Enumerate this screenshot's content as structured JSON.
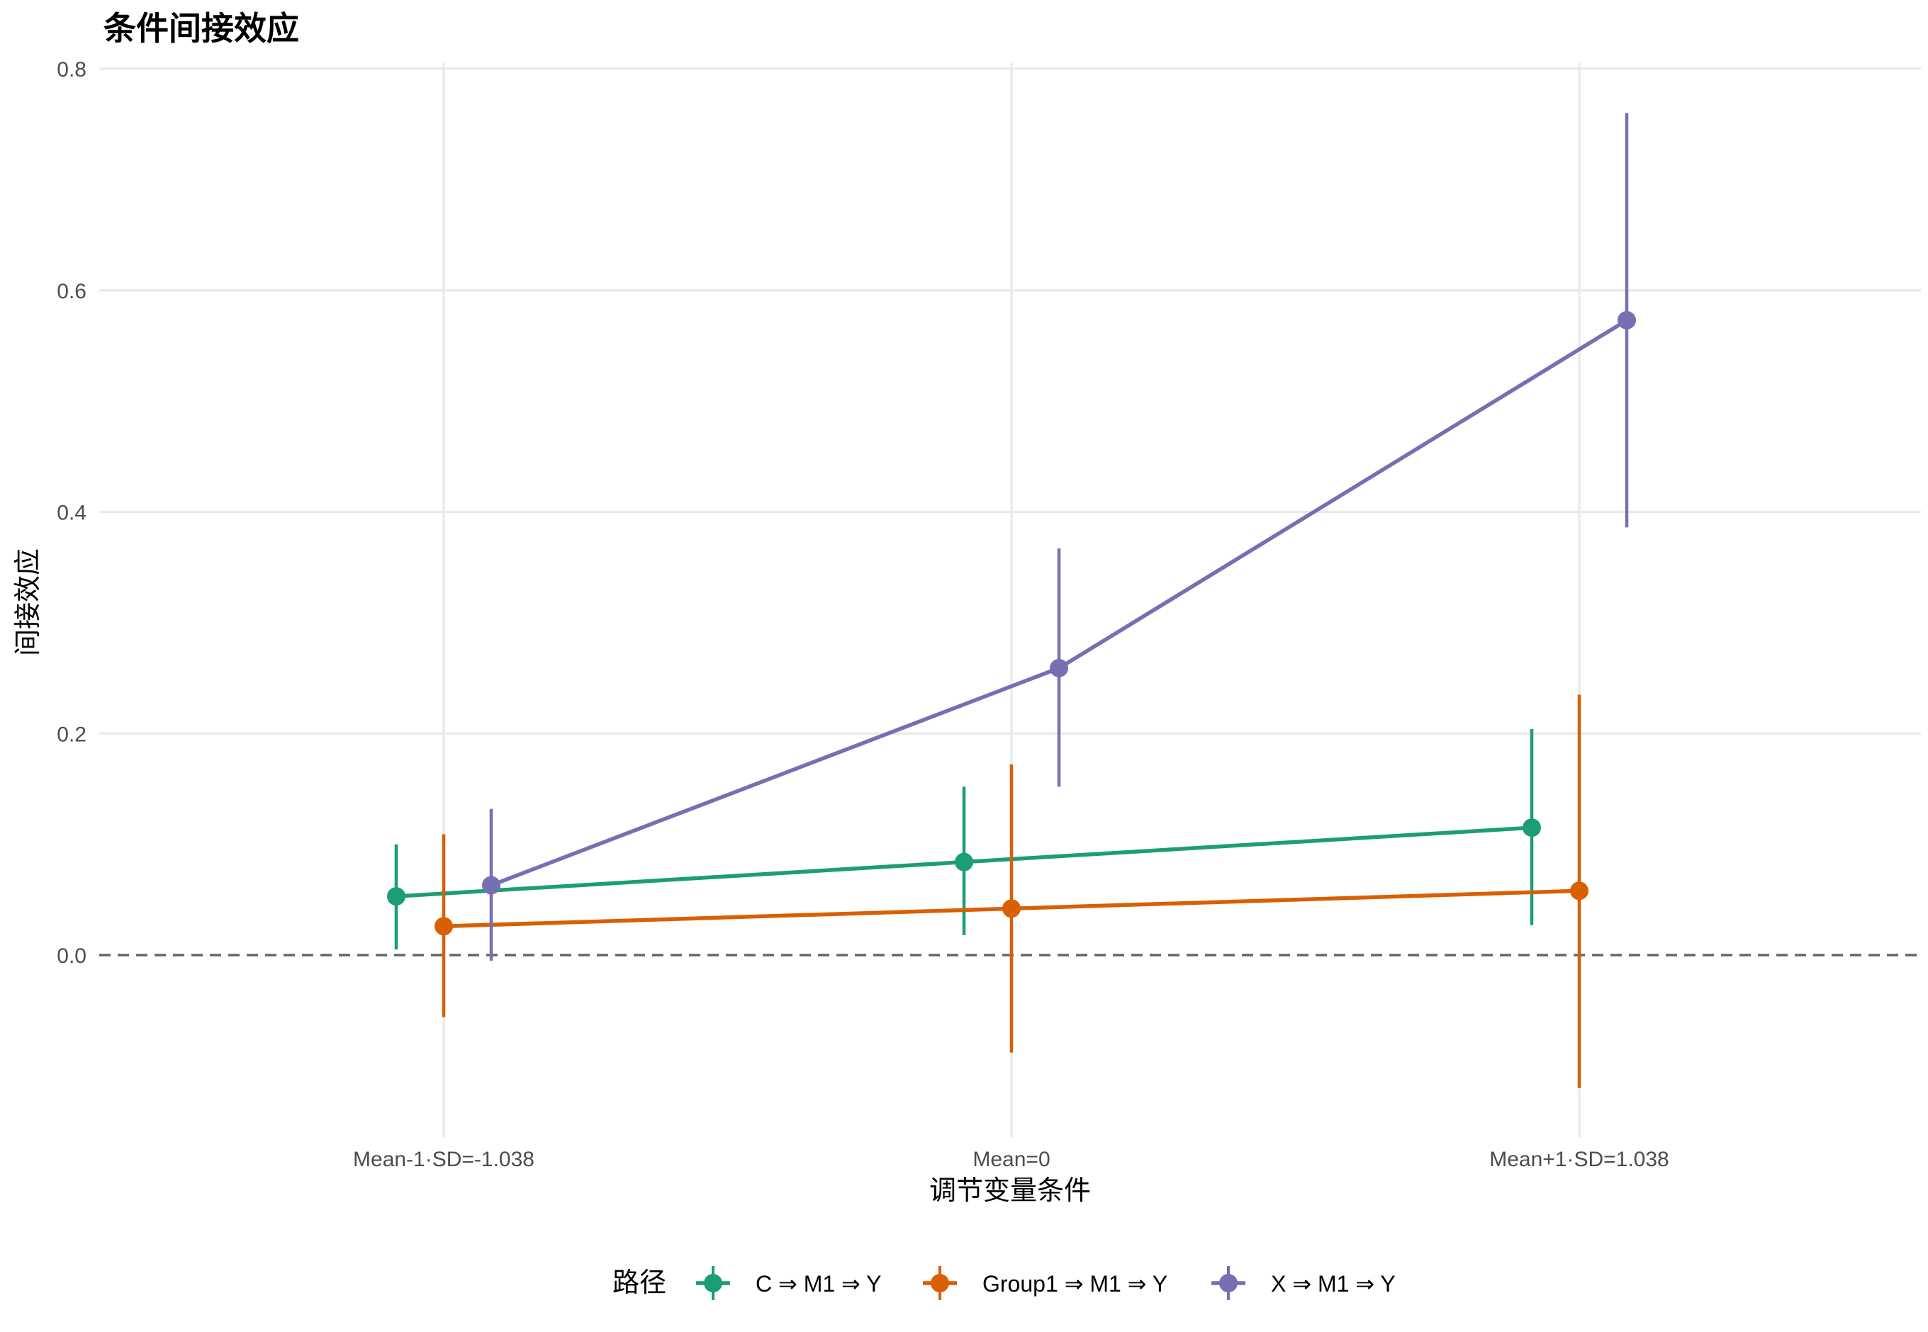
{
  "chart_data": {
    "type": "line",
    "title": "条件间接效应",
    "xlabel": "调节变量条件",
    "ylabel": "间接效应",
    "categories": [
      "Mean-1·SD=-1.038",
      "Mean=0",
      "Mean+1·SD=1.038"
    ],
    "ylim": [
      -0.16,
      0.8
    ],
    "yticks": [
      0.0,
      0.2,
      0.4,
      0.6,
      0.8
    ],
    "ytick_labels": [
      "0.0",
      "0.2",
      "0.4",
      "0.6",
      "0.8"
    ],
    "reference_line": 0,
    "grid": true,
    "legend_position": "bottom",
    "legend_title": "路径",
    "series": [
      {
        "name": "C ⇒ M1 ⇒ Y",
        "color": "#1b9e77",
        "values": [
          0.053,
          0.084,
          0.115
        ],
        "lower": [
          0.005,
          0.018,
          0.027
        ],
        "upper": [
          0.1,
          0.152,
          0.204
        ]
      },
      {
        "name": "Group1 ⇒ M1 ⇒ Y",
        "color": "#d95f02",
        "values": [
          0.026,
          0.042,
          0.058
        ],
        "lower": [
          -0.056,
          -0.088,
          -0.12
        ],
        "upper": [
          0.109,
          0.172,
          0.235
        ]
      },
      {
        "name": "X ⇒ M1 ⇒ Y",
        "color": "#7570b3",
        "values": [
          0.063,
          0.259,
          0.573
        ],
        "lower": [
          -0.005,
          0.152,
          0.386
        ],
        "upper": [
          0.132,
          0.367,
          0.76
        ]
      }
    ]
  }
}
